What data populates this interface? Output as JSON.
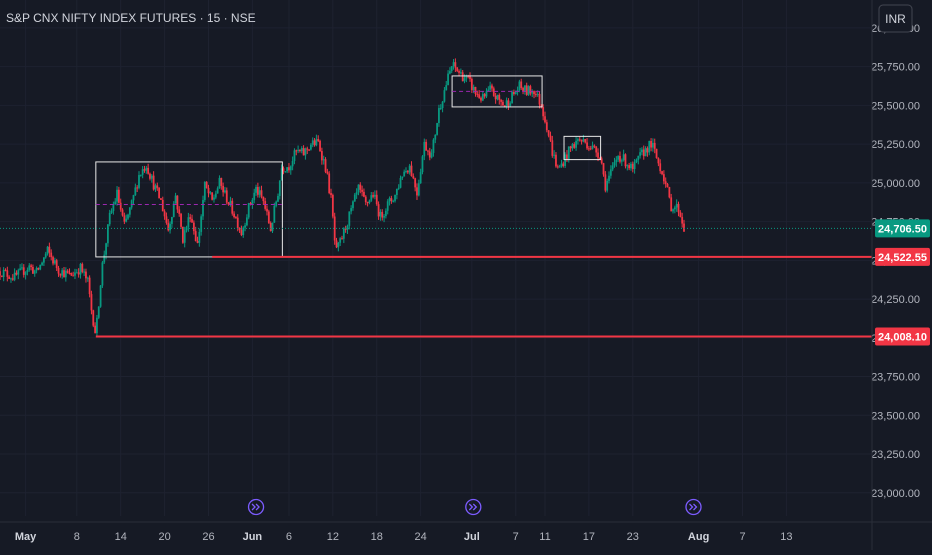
{
  "header": {
    "symbol_title": "S&P CNX NIFTY INDEX FUTURES · 15 · NSE"
  },
  "currency_button": {
    "label": "INR"
  },
  "chart_data": {
    "type": "candlestick",
    "title": "S&P CNX NIFTY INDEX FUTURES · 15 · NSE",
    "currency": "INR",
    "y_ticks": [
      "26,000.00",
      "25,750.00",
      "25,500.00",
      "25,250.00",
      "25,000.00",
      "24,750.00",
      "24,500.00",
      "24,250.00",
      "24,000.00",
      "23,750.00",
      "23,500.00",
      "23,250.00",
      "23,000.00"
    ],
    "y_tick_values": [
      26000,
      25750,
      25500,
      25250,
      25000,
      24750,
      24500,
      24250,
      24000,
      23750,
      23500,
      23250,
      23000
    ],
    "ylim": [
      22850,
      26180
    ],
    "x_ticks": [
      "May",
      "8",
      "14",
      "20",
      "26",
      "Jun",
      "6",
      "12",
      "18",
      "24",
      "Jul",
      "7",
      "11",
      "17",
      "23",
      "Aug",
      "7",
      "13"
    ],
    "x_tick_days": [
      0,
      7,
      13,
      19,
      25,
      31,
      36,
      42,
      48,
      54,
      61,
      67,
      71,
      77,
      83,
      92,
      98,
      104
    ],
    "xlim": [
      -3.5,
      115.7
    ],
    "bold_x_ticks": [
      "May",
      "Jun",
      "Jul",
      "Aug"
    ],
    "last_price": {
      "value": 24706.5,
      "label": "24,706.50",
      "color": "#089981"
    },
    "levels": [
      {
        "value": 24522.55,
        "label": "24,522.55",
        "start_day": 25.5,
        "color": "#f23645"
      },
      {
        "value": 24008.1,
        "label": "24,008.10",
        "start_day": 9.6,
        "color": "#f23645"
      }
    ],
    "consolidation_boxes": [
      {
        "start_day": 9.6,
        "end_day": 35.1,
        "low": 24522,
        "high": 25135,
        "midline": 24860
      },
      {
        "start_day": 58.3,
        "end_day": 70.6,
        "low": 25490,
        "high": 25690,
        "midline": 25590
      },
      {
        "start_day": 73.6,
        "end_day": 78.6,
        "low": 25150,
        "high": 25300,
        "midline": null
      }
    ],
    "price_path": [
      [
        -3.5,
        24430
      ],
      [
        -1.5,
        24390
      ],
      [
        0.5,
        24460
      ],
      [
        1.5,
        24420
      ],
      [
        3,
        24560
      ],
      [
        4.5,
        24440
      ],
      [
        6,
        24400
      ],
      [
        7.5,
        24450
      ],
      [
        8.5,
        24360
      ],
      [
        9,
        24180
      ],
      [
        9.6,
        24020
      ],
      [
        10.4,
        24440
      ],
      [
        11.5,
        24780
      ],
      [
        12.5,
        24930
      ],
      [
        13.5,
        24720
      ],
      [
        14.5,
        24860
      ],
      [
        15.5,
        25050
      ],
      [
        16.5,
        25120
      ],
      [
        17.5,
        24990
      ],
      [
        18.5,
        24880
      ],
      [
        19.5,
        24700
      ],
      [
        20.5,
        24920
      ],
      [
        21.5,
        24640
      ],
      [
        22.5,
        24800
      ],
      [
        23.5,
        24600
      ],
      [
        24.5,
        24980
      ],
      [
        25.5,
        24880
      ],
      [
        26.5,
        25000
      ],
      [
        27.5,
        24900
      ],
      [
        28.5,
        24800
      ],
      [
        29.5,
        24680
      ],
      [
        30.5,
        24840
      ],
      [
        31.5,
        24960
      ],
      [
        32.5,
        24880
      ],
      [
        33.5,
        24700
      ],
      [
        34.5,
        24940
      ],
      [
        35,
        25100
      ],
      [
        36,
        25110
      ],
      [
        37,
        25200
      ],
      [
        38,
        25190
      ],
      [
        39,
        25250
      ],
      [
        40,
        25260
      ],
      [
        41,
        25100
      ],
      [
        41.8,
        24880
      ],
      [
        42.4,
        24540
      ],
      [
        43.2,
        24640
      ],
      [
        44.5,
        24820
      ],
      [
        45.5,
        24960
      ],
      [
        46.5,
        24860
      ],
      [
        47.5,
        24930
      ],
      [
        48.5,
        24780
      ],
      [
        49.5,
        24860
      ],
      [
        50.5,
        24920
      ],
      [
        51.5,
        25060
      ],
      [
        52.5,
        25110
      ],
      [
        53.5,
        24940
      ],
      [
        54.5,
        25250
      ],
      [
        55.5,
        25180
      ],
      [
        56.5,
        25470
      ],
      [
        57.5,
        25640
      ],
      [
        58.3,
        25760
      ],
      [
        59.5,
        25700
      ],
      [
        60.5,
        25660
      ],
      [
        61.5,
        25580
      ],
      [
        62.5,
        25540
      ],
      [
        63.5,
        25600
      ],
      [
        64.5,
        25540
      ],
      [
        65.5,
        25500
      ],
      [
        66.5,
        25560
      ],
      [
        67.5,
        25620
      ],
      [
        68.5,
        25590
      ],
      [
        69.5,
        25600
      ],
      [
        70.5,
        25500
      ],
      [
        71.2,
        25380
      ],
      [
        72,
        25200
      ],
      [
        72.8,
        25080
      ],
      [
        73.6,
        25150
      ],
      [
        74.6,
        25230
      ],
      [
        75.6,
        25280
      ],
      [
        76.6,
        25260
      ],
      [
        77.6,
        25220
      ],
      [
        78.6,
        25180
      ],
      [
        79.2,
        24980
      ],
      [
        80,
        25060
      ],
      [
        81,
        25180
      ],
      [
        82,
        25140
      ],
      [
        83,
        25080
      ],
      [
        84,
        25170
      ],
      [
        85,
        25230
      ],
      [
        85.6,
        25250
      ],
      [
        86.4,
        25140
      ],
      [
        87.2,
        25050
      ],
      [
        88.2,
        24850
      ],
      [
        89.2,
        24840
      ],
      [
        90,
        24710
      ]
    ],
    "candles_per_day": 4,
    "up_color": "#089981",
    "down_color": "#f23645",
    "marker_days": [
      31.5,
      61.2,
      91.3
    ]
  }
}
